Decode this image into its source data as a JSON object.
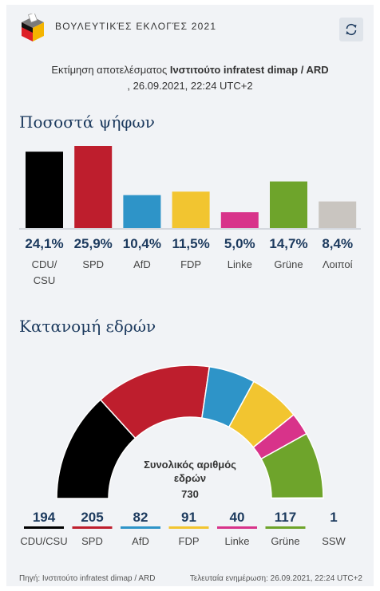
{
  "header": {
    "title": "ΒΟΥΛΕΥΤΙΚΈΣ ΕΚΛΟΓΈΣ 2021",
    "refresh_icon": "refresh-icon",
    "logo_icon": "ballot-box-icon"
  },
  "subtitle": {
    "prefix": "Εκτίμηση αποτελέσματος ",
    "institute": "Ινστιτούτο infratest dimap / ARD",
    "datetime": ", 26.09.2021, 22:24 UTC+2"
  },
  "votes": {
    "title": "Ποσοστά ψήφων"
  },
  "seats": {
    "title": "Κατανομή εδρών",
    "total_label": "Συνολικός αριθμός εδρών",
    "total": "730"
  },
  "chart_data": [
    {
      "type": "bar",
      "title": "Ποσοστά ψήφων",
      "categories": [
        "CDU/CSU",
        "SPD",
        "AfD",
        "FDP",
        "Linke",
        "Grüne",
        "Λοιποί"
      ],
      "values": [
        24.1,
        25.9,
        10.4,
        11.5,
        5.0,
        14.7,
        8.4
      ],
      "labels": [
        "24,1%",
        "25,9%",
        "10,4%",
        "11,5%",
        "5,0%",
        "14,7%",
        "8,4%"
      ],
      "colors": [
        "#000000",
        "#be1e2d",
        "#2e94c8",
        "#f2c530",
        "#d8338a",
        "#6ea42b",
        "#c9c5c0"
      ],
      "ylim": [
        0,
        25.9
      ]
    },
    {
      "type": "pie",
      "title": "Κατανομή εδρών",
      "categories": [
        "CDU/CSU",
        "SPD",
        "AfD",
        "FDP",
        "Linke",
        "Grüne",
        "SSW"
      ],
      "values": [
        194,
        205,
        82,
        91,
        40,
        117,
        1
      ],
      "colors": [
        "#000000",
        "#be1e2d",
        "#2e94c8",
        "#f2c530",
        "#d8338a",
        "#6ea42b",
        "#2a6db5"
      ],
      "total": 730
    }
  ],
  "footer": {
    "source": "Πηγή: Ινστιτούτο infratest dimap / ARD",
    "updated": "Τελευταία ενημέρωση: 26.09.2021, 22:24 UTC+2"
  }
}
